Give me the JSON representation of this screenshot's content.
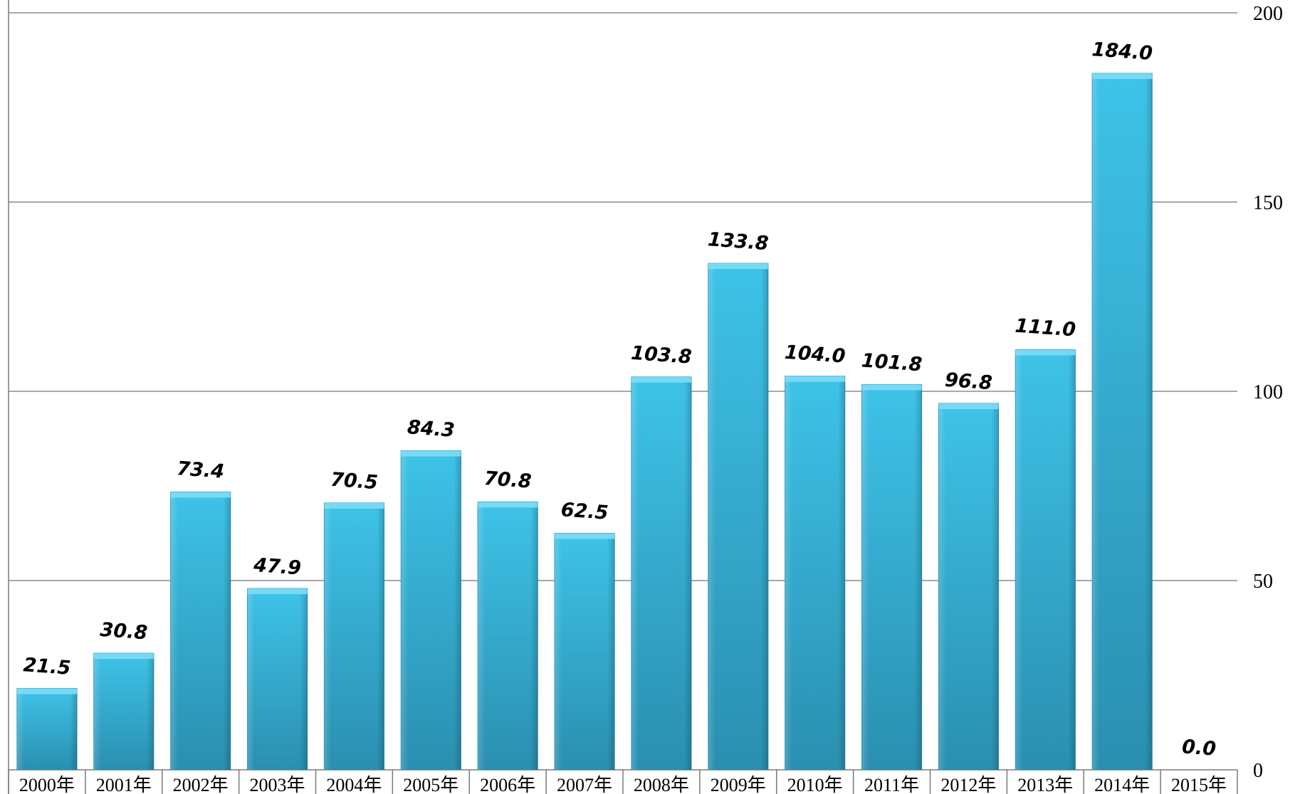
{
  "chart_data": {
    "type": "bar",
    "categories": [
      "2000年",
      "2001年",
      "2002年",
      "2003年",
      "2004年",
      "2005年",
      "2006年",
      "2007年",
      "2008年",
      "2009年",
      "2010年",
      "2011年",
      "2012年",
      "2013年",
      "2014年",
      "2015年"
    ],
    "values": [
      21.5,
      30.8,
      73.4,
      47.9,
      70.5,
      84.3,
      70.8,
      62.5,
      103.8,
      133.8,
      104.0,
      101.8,
      96.8,
      111.0,
      184.0,
      0.0
    ],
    "data_labels": [
      "21.5",
      "30.8",
      "73.4",
      "47.9",
      "70.5",
      "84.3",
      "70.8",
      "62.5",
      "103.8",
      "133.8",
      "104.0",
      "101.8",
      "96.8",
      "111.0",
      "184.0",
      "0.0"
    ],
    "y_ticks": [
      0,
      50,
      100,
      150,
      200
    ],
    "y_tick_labels": [
      "0",
      "50",
      "100",
      "150",
      "200"
    ],
    "ylim": [
      0,
      200
    ],
    "y_axis_side": "right",
    "grid": true,
    "legend": "none",
    "title": "",
    "xlabel": "",
    "ylabel": "",
    "colors": {
      "bar_light": "#3ec3e8",
      "bar_dark": "#2a8fb0",
      "bar_top": "#7fdcf5",
      "grid": "#8c8c8c"
    }
  }
}
